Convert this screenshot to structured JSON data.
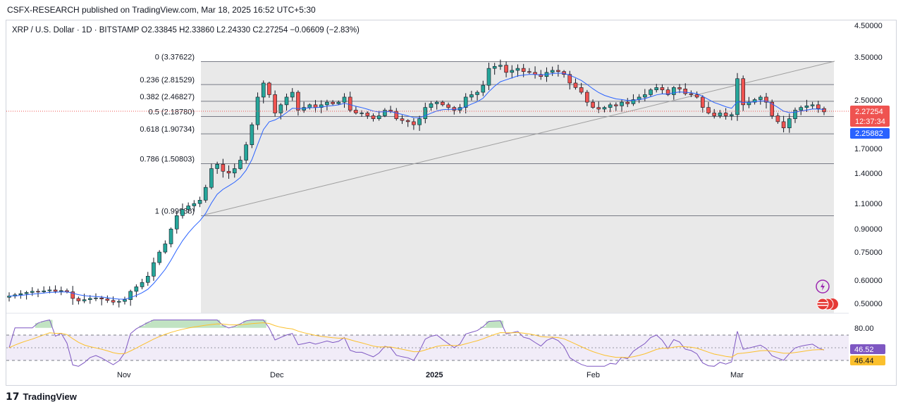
{
  "header": {
    "publisher_line": "CSFX-RESEARCH published on TradingView.com, Mar 18, 2025 16:52 UTC+5:30"
  },
  "chart": {
    "legend": "XRP / U.S. Dollar · 1D · BITSTAMP  O2.33845  H2.33860  L2.24330  C2.27254  −0.06609 (−2.83%)",
    "price_axis_labels": [
      "4.50000",
      "3.50000",
      "2.50000",
      "1.70000",
      "1.40000",
      "1.10000",
      "0.90000",
      "0.75000",
      "0.60000",
      "0.50000"
    ],
    "current_price_label": "2.27254",
    "countdown_label": "12:37:34",
    "ma_price_label": "2.25882",
    "time_labels": [
      "Nov",
      "Dec",
      "2025",
      "Feb",
      "Mar"
    ],
    "rsi_axis_label": "80.00",
    "rsi_value_label": "46.52",
    "rsi_ma_label": "46.44",
    "colors": {
      "up": "#26a69a",
      "down": "#ef5350",
      "ma": "#2962ff",
      "rsi": "#7e57c2",
      "rsi_ma": "#fbc02d",
      "fib_zone": "#e8e8e8"
    },
    "icons": [
      "lightning-icon",
      "us-flag-icon"
    ]
  },
  "chart_data": {
    "type": "candlestick",
    "title": "XRP / U.S. Dollar · 1D · BITSTAMP",
    "ohlc_last": {
      "open": 2.33845,
      "high": 2.3386,
      "low": 2.2433,
      "close": 2.27254,
      "change": -0.06609,
      "change_pct": -2.83
    },
    "y_scale": "log",
    "fib_levels": [
      {
        "ratio": "0",
        "price": 3.37622,
        "label": "0 (3.37622)"
      },
      {
        "ratio": "0.236",
        "price": 2.81529,
        "label": "0.236 (2.81529)"
      },
      {
        "ratio": "0.382",
        "price": 2.46827,
        "label": "0.382 (2.46827)"
      },
      {
        "ratio": "0.5",
        "price": 2.1878,
        "label": "0.5 (2.18780)"
      },
      {
        "ratio": "0.618",
        "price": 1.90734,
        "label": "0.618 (1.90734)"
      },
      {
        "ratio": "0.786",
        "price": 1.50803,
        "label": "0.786 (1.50803)"
      },
      {
        "ratio": "1",
        "price": 0.99938,
        "label": "1 (0.99938)"
      }
    ],
    "closes": [
      0.53,
      0.535,
      0.54,
      0.545,
      0.55,
      0.548,
      0.552,
      0.556,
      0.55,
      0.553,
      0.548,
      0.52,
      0.51,
      0.515,
      0.52,
      0.522,
      0.518,
      0.512,
      0.505,
      0.508,
      0.515,
      0.55,
      0.57,
      0.59,
      0.62,
      0.69,
      0.75,
      0.8,
      0.9,
      1.0,
      1.05,
      1.08,
      1.1,
      1.13,
      1.25,
      1.45,
      1.5,
      1.42,
      1.4,
      1.45,
      1.55,
      1.75,
      2.05,
      2.55,
      2.85,
      2.6,
      2.25,
      2.4,
      2.55,
      2.65,
      2.3,
      2.35,
      2.4,
      2.35,
      2.4,
      2.45,
      2.42,
      2.45,
      2.55,
      2.3,
      2.25,
      2.25,
      2.2,
      2.15,
      2.2,
      2.3,
      2.28,
      2.15,
      2.12,
      2.1,
      2.05,
      2.15,
      2.35,
      2.42,
      2.45,
      2.4,
      2.35,
      2.3,
      2.35,
      2.55,
      2.6,
      2.65,
      2.8,
      3.2,
      3.25,
      3.28,
      3.1,
      3.15,
      3.2,
      3.12,
      3.1,
      3.05,
      3.0,
      3.1,
      3.15,
      3.12,
      3.05,
      2.85,
      2.75,
      2.65,
      2.45,
      2.35,
      2.32,
      2.35,
      2.4,
      2.38,
      2.45,
      2.42,
      2.5,
      2.55,
      2.6,
      2.7,
      2.75,
      2.7,
      2.6,
      2.75,
      2.72,
      2.62,
      2.6,
      2.55,
      2.35,
      2.25,
      2.2,
      2.25,
      2.2,
      2.22,
      2.95,
      2.4,
      2.45,
      2.5,
      2.55,
      2.45,
      2.2,
      2.1,
      2.0,
      2.15,
      2.3,
      2.35,
      2.38,
      2.4,
      2.33,
      2.27
    ],
    "rsi_range": [
      0,
      100
    ],
    "rsi_last": 46.52,
    "rsi_ma_last": 46.44,
    "rsi_overbought": 80
  }
}
